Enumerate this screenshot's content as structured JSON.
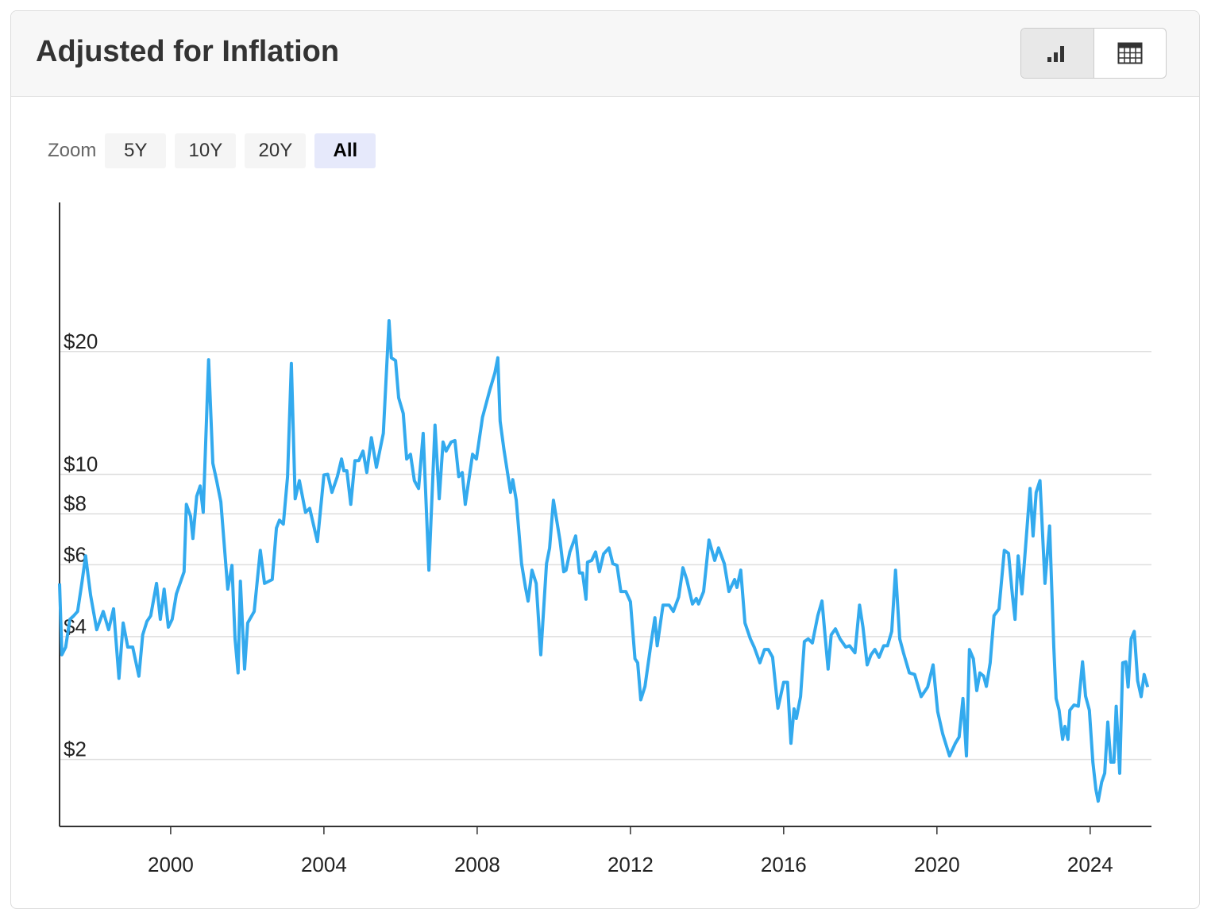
{
  "header": {
    "title": "Adjusted for Inflation"
  },
  "zoom": {
    "label": "Zoom",
    "options": [
      "5Y",
      "10Y",
      "20Y",
      "All"
    ],
    "active_index": 3
  },
  "chart_data": {
    "type": "line",
    "color": "#33aaee",
    "log_scale": true,
    "grid": true,
    "x": [
      1997.1,
      1997.16,
      1997.26,
      1997.37,
      1997.47,
      1997.57,
      1997.68,
      1997.78,
      1997.91,
      1998.07,
      1998.24,
      1998.38,
      1998.51,
      1998.65,
      1998.76,
      1998.88,
      1999.01,
      1999.17,
      1999.27,
      1999.38,
      1999.48,
      1999.63,
      1999.73,
      1999.83,
      1999.94,
      2000.04,
      2000.15,
      2000.35,
      2000.41,
      2000.52,
      2000.58,
      2000.68,
      2000.77,
      2000.85,
      2000.99,
      2001.1,
      2001.2,
      2001.31,
      2001.49,
      2001.6,
      2001.68,
      2001.76,
      2001.82,
      2001.93,
      2002.01,
      2002.18,
      2002.34,
      2002.45,
      2002.65,
      2002.76,
      2002.84,
      2002.94,
      2003.05,
      2003.15,
      2003.25,
      2003.36,
      2003.52,
      2003.63,
      2003.83,
      2004.0,
      2004.1,
      2004.21,
      2004.35,
      2004.46,
      2004.52,
      2004.6,
      2004.7,
      2004.81,
      2004.91,
      2005.02,
      2005.12,
      2005.24,
      2005.37,
      2005.55,
      2005.7,
      2005.76,
      2005.87,
      2005.95,
      2006.07,
      2006.16,
      2006.26,
      2006.36,
      2006.47,
      2006.59,
      2006.74,
      2006.9,
      2007.01,
      2007.11,
      2007.19,
      2007.32,
      2007.42,
      2007.52,
      2007.61,
      2007.69,
      2007.88,
      2007.98,
      2008.14,
      2008.33,
      2008.46,
      2008.54,
      2008.6,
      2008.7,
      2008.87,
      2008.93,
      2009.02,
      2009.16,
      2009.26,
      2009.33,
      2009.43,
      2009.54,
      2009.66,
      2009.81,
      2009.89,
      2009.99,
      2010.16,
      2010.26,
      2010.32,
      2010.42,
      2010.57,
      2010.67,
      2010.75,
      2010.84,
      2010.88,
      2010.99,
      2011.09,
      2011.19,
      2011.3,
      2011.44,
      2011.54,
      2011.65,
      2011.75,
      2011.88,
      2012.0,
      2012.12,
      2012.19,
      2012.27,
      2012.38,
      2012.54,
      2012.64,
      2012.7,
      2012.85,
      2013.01,
      2013.12,
      2013.26,
      2013.37,
      2013.47,
      2013.62,
      2013.72,
      2013.78,
      2013.91,
      2014.05,
      2014.2,
      2014.3,
      2014.45,
      2014.57,
      2014.72,
      2014.78,
      2014.88,
      2014.99,
      2015.13,
      2015.23,
      2015.38,
      2015.5,
      2015.6,
      2015.71,
      2015.85,
      2016.0,
      2016.1,
      2016.19,
      2016.27,
      2016.33,
      2016.44,
      2016.54,
      2016.64,
      2016.75,
      2016.79,
      2016.89,
      2017.0,
      2017.08,
      2017.16,
      2017.24,
      2017.35,
      2017.47,
      2017.62,
      2017.72,
      2017.86,
      2017.98,
      2018.07,
      2018.18,
      2018.28,
      2018.38,
      2018.49,
      2018.61,
      2018.71,
      2018.82,
      2018.92,
      2019.03,
      2019.13,
      2019.28,
      2019.42,
      2019.59,
      2019.76,
      2019.9,
      2020.02,
      2020.15,
      2020.33,
      2020.48,
      2020.58,
      2020.68,
      2020.77,
      2020.85,
      2020.95,
      2021.04,
      2021.12,
      2021.22,
      2021.29,
      2021.39,
      2021.49,
      2021.62,
      2021.76,
      2021.87,
      2021.97,
      2022.04,
      2022.12,
      2022.22,
      2022.43,
      2022.51,
      2022.59,
      2022.69,
      2022.82,
      2022.94,
      2023.05,
      2023.11,
      2023.19,
      2023.28,
      2023.34,
      2023.42,
      2023.47,
      2023.58,
      2023.69,
      2023.8,
      2023.88,
      2023.98,
      2024.07,
      2024.15,
      2024.21,
      2024.3,
      2024.38,
      2024.46,
      2024.54,
      2024.62,
      2024.68,
      2024.77,
      2024.85,
      2024.93,
      2024.99,
      2025.07,
      2025.15,
      2025.24,
      2025.33,
      2025.41,
      2025.5
    ],
    "values": [
      5.4,
      3.61,
      3.77,
      4.41,
      4.5,
      4.61,
      5.4,
      6.31,
      5.05,
      4.16,
      4.61,
      4.16,
      4.68,
      3.16,
      4.32,
      3.77,
      3.77,
      3.2,
      4.04,
      4.36,
      4.5,
      5.4,
      4.41,
      5.23,
      4.22,
      4.41,
      5.09,
      5.77,
      8.44,
      7.89,
      6.96,
      8.83,
      9.36,
      8.07,
      19.1,
      10.65,
      9.65,
      8.56,
      5.23,
      5.98,
      3.95,
      3.26,
      5.47,
      3.33,
      4.32,
      4.61,
      6.51,
      5.4,
      5.52,
      7.38,
      7.72,
      7.55,
      9.87,
      18.7,
      8.71,
      9.65,
      8.07,
      8.25,
      6.84,
      9.96,
      10.0,
      9.03,
      9.87,
      10.9,
      10.2,
      10.2,
      8.44,
      10.8,
      10.8,
      11.4,
      10.1,
      12.3,
      10.4,
      12.6,
      23.8,
      19.3,
      19.0,
      15.4,
      14.1,
      10.9,
      11.2,
      9.65,
      9.23,
      12.6,
      5.82,
      13.2,
      8.71,
      12.0,
      11.4,
      12.0,
      12.1,
      9.87,
      10.1,
      8.44,
      11.2,
      10.9,
      13.8,
      16.1,
      17.7,
      19.3,
      13.5,
      11.5,
      9.03,
      9.7,
      8.64,
      6.04,
      5.28,
      4.89,
      5.82,
      5.4,
      3.61,
      6.04,
      6.6,
      8.64,
      6.9,
      5.77,
      5.82,
      6.45,
      7.06,
      5.73,
      5.73,
      4.94,
      6.09,
      6.15,
      6.45,
      5.77,
      6.38,
      6.6,
      6.04,
      5.98,
      5.16,
      5.16,
      4.87,
      3.53,
      3.45,
      2.8,
      3.02,
      3.86,
      4.45,
      3.8,
      4.78,
      4.78,
      4.61,
      5.0,
      5.9,
      5.52,
      4.81,
      4.96,
      4.81,
      5.16,
      6.9,
      6.15,
      6.6,
      6.04,
      5.16,
      5.52,
      5.28,
      5.82,
      4.32,
      3.95,
      3.77,
      3.45,
      3.72,
      3.72,
      3.56,
      2.67,
      3.09,
      3.09,
      2.19,
      2.66,
      2.52,
      2.85,
      3.89,
      3.95,
      3.86,
      4.04,
      4.5,
      4.89,
      4.04,
      3.33,
      4.04,
      4.18,
      3.95,
      3.77,
      3.8,
      3.65,
      4.78,
      4.22,
      3.41,
      3.61,
      3.72,
      3.56,
      3.8,
      3.8,
      4.12,
      5.82,
      3.95,
      3.64,
      3.26,
      3.23,
      2.85,
      3.01,
      3.41,
      2.62,
      2.31,
      2.04,
      2.19,
      2.27,
      2.82,
      2.04,
      3.72,
      3.53,
      2.95,
      3.26,
      3.2,
      3.02,
      3.45,
      4.5,
      4.68,
      6.51,
      6.4,
      5.05,
      4.41,
      6.31,
      5.09,
      9.23,
      7.06,
      9.03,
      9.65,
      5.4,
      7.47,
      3.77,
      2.82,
      2.64,
      2.24,
      2.41,
      2.24,
      2.64,
      2.72,
      2.7,
      3.47,
      2.86,
      2.64,
      1.97,
      1.69,
      1.58,
      1.76,
      1.85,
      2.47,
      1.97,
      1.97,
      2.7,
      1.85,
      3.45,
      3.47,
      3.01,
      3.95,
      4.12,
      3.12,
      2.85,
      3.23,
      3.01
    ],
    "xlim": [
      1997.1,
      2025.6
    ],
    "xticks": [
      2000,
      2004,
      2008,
      2012,
      2016,
      2020,
      2024
    ],
    "ylim": [
      1.37,
      46.4
    ],
    "yticks": [
      {
        "value": 2,
        "label": "$2"
      },
      {
        "value": 4,
        "label": "$4"
      },
      {
        "value": 6,
        "label": "$6"
      },
      {
        "value": 8,
        "label": "$8"
      },
      {
        "value": 10,
        "label": "$10"
      },
      {
        "value": 20,
        "label": "$20"
      }
    ]
  }
}
